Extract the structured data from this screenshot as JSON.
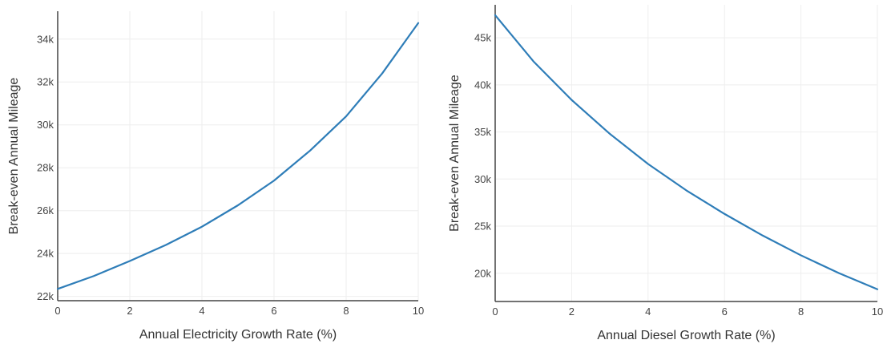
{
  "chart_data": [
    {
      "type": "line",
      "title": "",
      "xlabel": "Annual Electricity Growth Rate (%)",
      "ylabel": "Break-even Annual Mileage",
      "xlim": [
        0,
        10
      ],
      "ylim": [
        21800,
        35300
      ],
      "xticks": [
        0,
        2,
        4,
        6,
        8,
        10
      ],
      "xtick_labels": [
        "0",
        "2",
        "4",
        "6",
        "8",
        "10"
      ],
      "yticks": [
        22000,
        24000,
        26000,
        28000,
        30000,
        32000,
        34000
      ],
      "ytick_labels": [
        "22k",
        "24k",
        "26k",
        "28k",
        "30k",
        "32k",
        "34k"
      ],
      "grid": true,
      "color": "#2e7db8",
      "series": [
        {
          "x": [
            0,
            1,
            2,
            3,
            4,
            5,
            6,
            7,
            8,
            9,
            10
          ],
          "values": [
            22350,
            22950,
            23650,
            24400,
            25250,
            26250,
            27400,
            28800,
            30400,
            32400,
            34750
          ]
        }
      ]
    },
    {
      "type": "line",
      "title": "",
      "xlabel": "Annual Diesel Growth Rate (%)",
      "ylabel": "Break-even Annual Mileage",
      "xlim": [
        0,
        10
      ],
      "ylim": [
        17000,
        48500
      ],
      "xticks": [
        0,
        2,
        4,
        6,
        8,
        10
      ],
      "xtick_labels": [
        "0",
        "2",
        "4",
        "6",
        "8",
        "10"
      ],
      "yticks": [
        20000,
        25000,
        30000,
        35000,
        40000,
        45000
      ],
      "ytick_labels": [
        "20k",
        "25k",
        "30k",
        "35k",
        "40k",
        "45k"
      ],
      "grid": true,
      "color": "#2e7db8",
      "series": [
        {
          "x": [
            0,
            1,
            2,
            3,
            4,
            5,
            6,
            7,
            8,
            9,
            10
          ],
          "values": [
            47400,
            42500,
            38400,
            34800,
            31600,
            28800,
            26300,
            24000,
            21900,
            20000,
            18300
          ]
        }
      ]
    }
  ]
}
